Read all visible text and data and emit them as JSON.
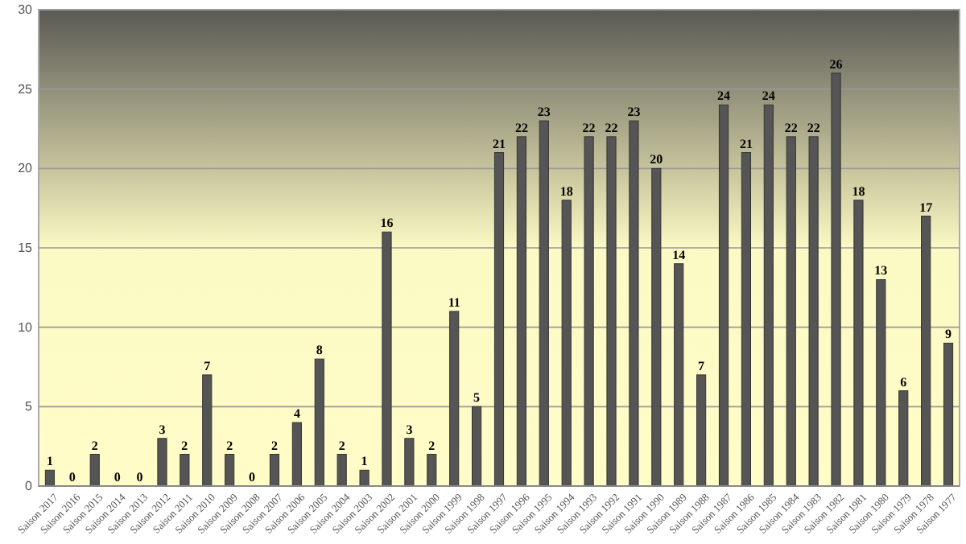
{
  "chart_data": {
    "type": "bar",
    "categories": [
      "Saison 2017",
      "Saison 2016",
      "Saison 2015",
      "Saison 2014",
      "Saison 2013",
      "Saison 2012",
      "Saison 2011",
      "Saison 2010",
      "Saison 2009",
      "Saison 2008",
      "Saison 2007",
      "Saison 2006",
      "Saison 2005",
      "Saison 2004",
      "Saison 2003",
      "Saison 2002",
      "Saison 2001",
      "Saison 2000",
      "Saison 1999",
      "Saison 1998",
      "Saison 1997",
      "Saison 1996",
      "Saison 1995",
      "Saison 1994",
      "Saison 1993",
      "Saison 1992",
      "Saison 1991",
      "Saison 1990",
      "Saison 1989",
      "Saison 1988",
      "Saison 1987",
      "Saison 1986",
      "Saison 1985",
      "Saison 1984",
      "Saison 1983",
      "Saison 1982",
      "Saison 1981",
      "Saison 1980",
      "Saison 1979",
      "Saison 1978",
      "Saison 1977"
    ],
    "values": [
      1,
      0,
      2,
      0,
      0,
      3,
      2,
      7,
      2,
      0,
      2,
      4,
      8,
      2,
      1,
      16,
      3,
      2,
      11,
      5,
      21,
      22,
      23,
      18,
      22,
      22,
      23,
      20,
      14,
      7,
      24,
      21,
      24,
      22,
      22,
      26,
      18,
      13,
      6,
      17,
      9
    ],
    "color": "#555555",
    "ylim": [
      0,
      30
    ],
    "yticks": [
      0,
      5,
      10,
      15,
      20,
      25,
      30
    ],
    "grid": "y",
    "data_labels": true
  }
}
